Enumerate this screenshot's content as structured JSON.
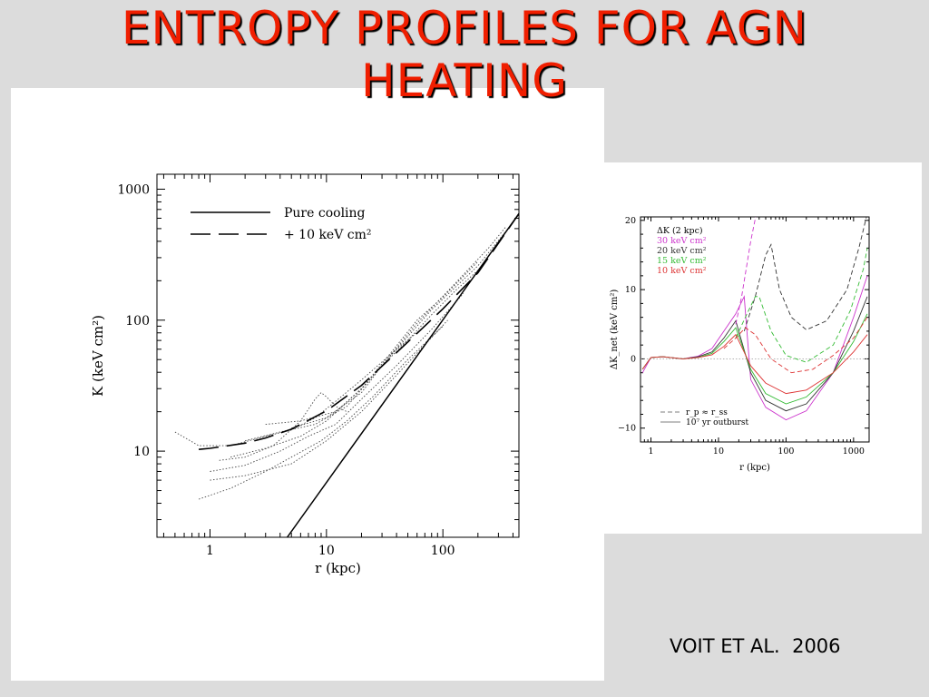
{
  "slide": {
    "title_line1": "ENTROPY PROFILES FOR AGN",
    "title_line2": "HEATING",
    "credit": "VOIT ET AL.  2006"
  },
  "chart_data": [
    {
      "type": "line",
      "xlabel": "r (kpc)",
      "ylabel": "K  (keV cm²)",
      "xscale": "log",
      "yscale": "log",
      "xlim": [
        0.35,
        450
      ],
      "ylim": [
        2.2,
        1300
      ],
      "xticks": [
        {
          "v": 1,
          "label": "1"
        },
        {
          "v": 10,
          "label": "10"
        },
        {
          "v": 100,
          "label": "100"
        }
      ],
      "yticks": [
        {
          "v": 10,
          "label": "10"
        },
        {
          "v": 100,
          "label": "100"
        },
        {
          "v": 1000,
          "label": "1000"
        }
      ],
      "legend": {
        "position": "top-left",
        "entries": [
          {
            "label": "Pure cooling",
            "style": "solid"
          },
          {
            "label": "+ 10 keV cm²",
            "style": "long-dash"
          }
        ]
      },
      "series": [
        {
          "style": "solid",
          "x": [
            4.6,
            450
          ],
          "y": [
            2.2,
            650
          ]
        },
        {
          "style": "long-dash",
          "x": [
            0.8,
            1,
            2,
            3,
            5,
            10,
            20,
            50,
            100,
            200,
            450
          ],
          "y": [
            10.3,
            10.5,
            11.5,
            12.6,
            14.7,
            20.3,
            31.8,
            68,
            122,
            230,
            650
          ]
        },
        {
          "style": "dotted",
          "x": [
            0.5,
            0.8,
            1.5,
            3,
            5,
            8,
            12,
            20,
            40,
            70
          ],
          "y": [
            14,
            11,
            11,
            13,
            14.5,
            18,
            24,
            35,
            60,
            90
          ]
        },
        {
          "style": "dotted",
          "x": [
            0.8,
            1.5,
            3,
            5,
            9,
            15,
            25,
            50,
            100
          ],
          "y": [
            4.3,
            5.2,
            7,
            9,
            12,
            17,
            26,
            50,
            90
          ]
        },
        {
          "style": "dotted",
          "x": [
            1,
            2,
            4,
            7,
            12,
            20,
            40,
            80,
            150
          ],
          "y": [
            7,
            7.8,
            10,
            13,
            16,
            25,
            45,
            85,
            160
          ]
        },
        {
          "style": "dotted",
          "x": [
            1.2,
            2,
            3.5,
            6,
            8,
            9,
            10,
            12,
            15
          ],
          "y": [
            8.5,
            9,
            11,
            17,
            25,
            28,
            26,
            22,
            20
          ]
        },
        {
          "style": "dotted",
          "x": [
            1.5,
            3,
            6,
            10,
            20,
            40,
            80,
            200,
            350
          ],
          "y": [
            9,
            10.5,
            13,
            17,
            30,
            60,
            120,
            260,
            480
          ]
        },
        {
          "style": "dotted",
          "x": [
            2,
            4,
            8,
            15,
            30,
            60,
            120,
            250,
            350
          ],
          "y": [
            12,
            14,
            16,
            22,
            45,
            95,
            180,
            360,
            520
          ]
        },
        {
          "style": "dotted",
          "x": [
            3,
            6,
            12,
            20,
            35,
            60,
            100,
            200
          ],
          "y": [
            16,
            17,
            20,
            30,
            55,
            100,
            150,
            280
          ]
        },
        {
          "style": "dotted",
          "x": [
            5,
            10,
            20,
            30,
            50,
            80,
            130,
            200
          ],
          "y": [
            15,
            18,
            28,
            45,
            70,
            110,
            170,
            240
          ]
        },
        {
          "style": "dotted",
          "x": [
            1,
            2,
            5,
            10,
            20,
            40,
            70,
            110
          ],
          "y": [
            6,
            6.5,
            8,
            12,
            20,
            38,
            65,
            100
          ]
        }
      ]
    },
    {
      "type": "line",
      "xlabel": "r (kpc)",
      "ylabel": "ΔK_net (keV cm²)",
      "xscale": "log",
      "yscale": "linear",
      "xlim": [
        0.7,
        1700
      ],
      "ylim": [
        -12,
        20.5
      ],
      "xticks": [
        {
          "v": 1,
          "label": "1"
        },
        {
          "v": 10,
          "label": "10"
        },
        {
          "v": 100,
          "label": "100"
        },
        {
          "v": 1000,
          "label": "1000"
        }
      ],
      "yticks": [
        {
          "v": -10,
          "label": "−10"
        },
        {
          "v": 0,
          "label": "0"
        },
        {
          "v": 10,
          "label": "10"
        },
        {
          "v": 20,
          "label": "20"
        }
      ],
      "legend": {
        "position": "top-left",
        "heading": "ΔK (2 kpc)",
        "entries": [
          {
            "label": "30 keV cm²",
            "color": "#cc33cc"
          },
          {
            "label": "20 keV cm²",
            "color": "#333333"
          },
          {
            "label": "15 keV cm²",
            "color": "#33bb33"
          },
          {
            "label": "10 keV cm²",
            "color": "#dd3333"
          }
        ]
      },
      "style_legend": {
        "position": "bottom-left",
        "entries": [
          {
            "label": "r_p ≈ r_ss",
            "style": "dashed"
          },
          {
            "label": "10⁷ yr outburst",
            "style": "solid"
          }
        ]
      },
      "series": [
        {
          "color": "#999999",
          "style": "dotted",
          "x": [
            0.7,
            1700
          ],
          "y": [
            0,
            0
          ]
        },
        {
          "color": "#cc33cc",
          "style": "solid",
          "x": [
            0.75,
            1,
            1.5,
            3,
            5,
            8,
            12,
            18,
            24,
            30,
            50,
            100,
            200,
            500,
            1000,
            1600
          ],
          "y": [
            -2,
            0.2,
            0.3,
            0,
            0.4,
            1.5,
            4,
            6.5,
            9,
            -3,
            -7,
            -8.8,
            -7.5,
            -2,
            6,
            12
          ]
        },
        {
          "color": "#333333",
          "style": "solid",
          "x": [
            0.75,
            1,
            1.5,
            3,
            5,
            8,
            12,
            18,
            30,
            50,
            100,
            200,
            500,
            1000,
            1600
          ],
          "y": [
            -1.5,
            0.2,
            0.3,
            0,
            0.3,
            1,
            3,
            5.5,
            -2,
            -6,
            -7.5,
            -6.5,
            -2,
            4,
            9
          ]
        },
        {
          "color": "#33bb33",
          "style": "solid",
          "x": [
            0.75,
            1,
            1.5,
            3,
            5,
            8,
            12,
            18,
            30,
            50,
            100,
            200,
            500,
            1000,
            1600
          ],
          "y": [
            -1.5,
            0.2,
            0.3,
            0,
            0.2,
            0.8,
            2.5,
            4.5,
            -1.5,
            -5,
            -6.5,
            -5.5,
            -2,
            2.5,
            6.5
          ]
        },
        {
          "color": "#dd3333",
          "style": "solid",
          "x": [
            0.75,
            1,
            1.5,
            3,
            5,
            8,
            12,
            18,
            30,
            50,
            100,
            200,
            500,
            1000,
            1600
          ],
          "y": [
            -1.5,
            0.2,
            0.3,
            0,
            0.2,
            0.6,
            1.8,
            3.5,
            -1,
            -3.5,
            -5,
            -4.5,
            -2,
            1,
            3.5
          ]
        },
        {
          "color": "#cc33cc",
          "style": "dashed",
          "x": [
            18,
            22,
            30,
            40,
            55,
            80,
            130,
            250
          ],
          "y": [
            5,
            9,
            17,
            23,
            24,
            24,
            24,
            24
          ]
        },
        {
          "color": "#333333",
          "style": "dashed",
          "x": [
            24,
            35,
            50,
            60,
            80,
            120,
            200,
            400,
            800,
            1200,
            1600
          ],
          "y": [
            4,
            9,
            15,
            16.5,
            10,
            6,
            4.2,
            5.5,
            10,
            16,
            21
          ]
        },
        {
          "color": "#33bb33",
          "style": "dashed",
          "x": [
            18,
            25,
            35,
            40,
            60,
            100,
            200,
            500,
            900,
            1400,
            1600
          ],
          "y": [
            3,
            6,
            9,
            9,
            4,
            0.5,
            -0.5,
            2,
            7,
            13,
            16
          ]
        },
        {
          "color": "#dd3333",
          "style": "dashed",
          "x": [
            12,
            18,
            25,
            35,
            60,
            120,
            250,
            500,
            1000,
            1600
          ],
          "y": [
            1.5,
            3,
            4.5,
            3.5,
            0,
            -2,
            -1.5,
            0.5,
            3,
            6
          ]
        }
      ]
    }
  ]
}
